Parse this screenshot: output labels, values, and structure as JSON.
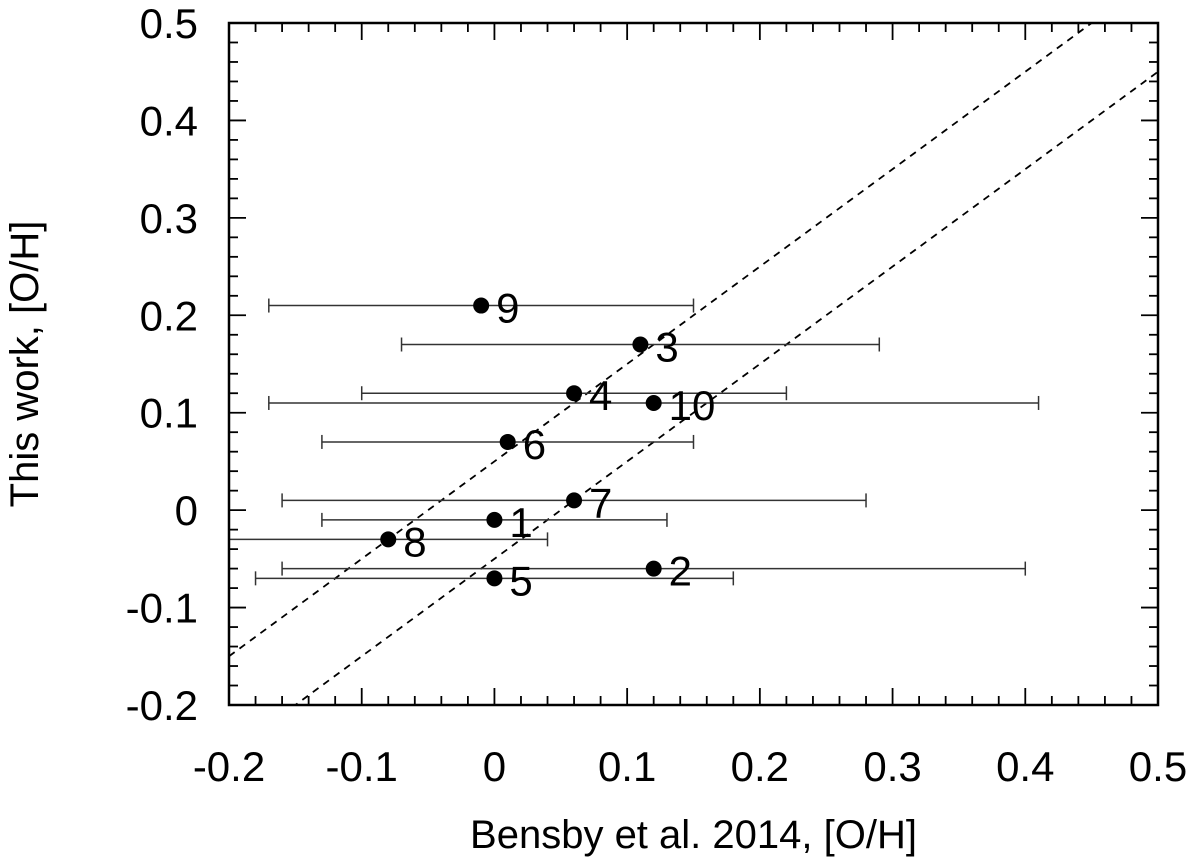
{
  "chart_data": {
    "type": "scatter",
    "title": "",
    "xlabel": "Bensby et al. 2014, [O/H]",
    "ylabel": "This work, [O/H]",
    "xlim": [
      -0.2,
      0.5
    ],
    "ylim": [
      -0.2,
      0.5
    ],
    "xticks": [
      -0.2,
      -0.1,
      0,
      0.1,
      0.2,
      0.3,
      0.4,
      0.5
    ],
    "yticks": [
      -0.2,
      -0.1,
      0,
      0.1,
      0.2,
      0.3,
      0.4,
      0.5
    ],
    "xtick_labels": [
      "-0.2",
      "-0.1",
      "0",
      "0.1",
      "0.2",
      "0.3",
      "0.4",
      "0.5"
    ],
    "ytick_labels": [
      "-0.2",
      "-0.1",
      "0",
      "0.1",
      "0.2",
      "0.3",
      "0.4",
      "0.5"
    ],
    "grid": false,
    "points": [
      {
        "label": "1",
        "x": 0.0,
        "y": -0.01,
        "xerr_low": -0.13,
        "xerr_high": 0.13
      },
      {
        "label": "2",
        "x": 0.12,
        "y": -0.06,
        "xerr_low": -0.16,
        "xerr_high": 0.4
      },
      {
        "label": "3",
        "x": 0.11,
        "y": 0.17,
        "xerr_low": -0.07,
        "xerr_high": 0.29
      },
      {
        "label": "4",
        "x": 0.06,
        "y": 0.12,
        "xerr_low": -0.1,
        "xerr_high": 0.22
      },
      {
        "label": "5",
        "x": 0.0,
        "y": -0.07,
        "xerr_low": -0.18,
        "xerr_high": 0.18
      },
      {
        "label": "6",
        "x": 0.01,
        "y": 0.07,
        "xerr_low": -0.13,
        "xerr_high": 0.15
      },
      {
        "label": "7",
        "x": 0.06,
        "y": 0.01,
        "xerr_low": -0.16,
        "xerr_high": 0.28
      },
      {
        "label": "8",
        "x": -0.08,
        "y": -0.03,
        "xerr_low": -0.2,
        "xerr_high": 0.04
      },
      {
        "label": "9",
        "x": -0.01,
        "y": 0.21,
        "xerr_low": -0.17,
        "xerr_high": 0.15
      },
      {
        "label": "10",
        "x": 0.12,
        "y": 0.11,
        "xerr_low": -0.17,
        "xerr_high": 0.41
      }
    ],
    "reference_lines": [
      {
        "style": "dashed",
        "slope": 1,
        "intercept": 0.05
      },
      {
        "style": "dashed",
        "slope": 1,
        "intercept": -0.05
      }
    ]
  }
}
